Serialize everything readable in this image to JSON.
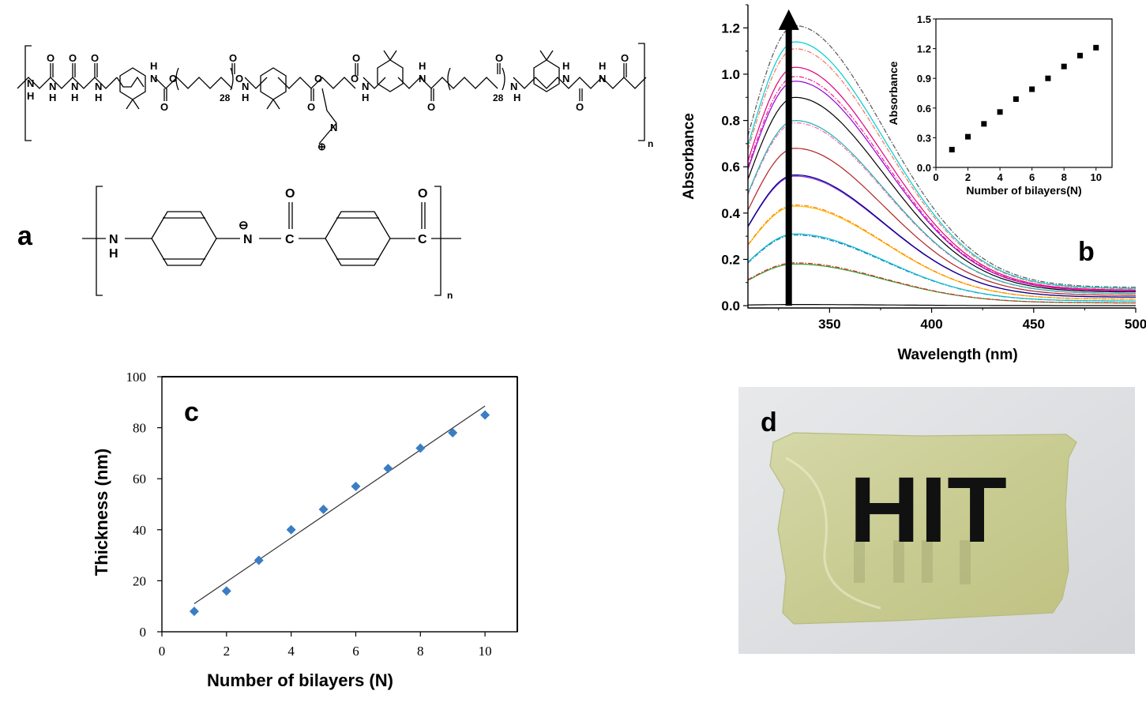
{
  "panels": {
    "a": {
      "letter": "a",
      "polymer1": {
        "repeat_subscript_1": "28",
        "repeat_subscript_2": "28",
        "n_label": "n",
        "atoms": [
          "H",
          "N",
          "O",
          "H",
          "N",
          "O",
          "H",
          "N",
          "O",
          "H",
          "N",
          "O",
          "O",
          "N",
          "H",
          "O",
          "O",
          "N",
          "H",
          "O",
          "N",
          "⊕",
          "O",
          "O",
          "O",
          "N",
          "H",
          "N",
          "H",
          "O",
          "N",
          "H",
          "O",
          "N",
          "H",
          "O",
          "N",
          "H",
          "O"
        ]
      },
      "polymer2": {
        "n_label": "n",
        "nh_n": "N",
        "nh_h": "H",
        "amide_n": "N",
        "minus": "⊖",
        "c1": "C",
        "o1": "O",
        "c2": "C",
        "o2": "O"
      }
    },
    "b": {
      "letter": "b"
    },
    "c": {
      "letter": "c"
    },
    "d": {
      "letter": "d",
      "printed_text": "HIT"
    }
  },
  "chart_data": [
    {
      "id": "b-main",
      "type": "line",
      "xlabel": "Wavelength (nm)",
      "ylabel": "Absorbance",
      "xlim": [
        310,
        500
      ],
      "ylim": [
        -0.01,
        1.3
      ],
      "xticks": [
        350,
        400,
        450,
        500
      ],
      "xtick_labels": [
        "350",
        "400",
        "450",
        "500"
      ],
      "yticks": [
        0.0,
        0.2,
        0.4,
        0.6,
        0.8,
        1.0,
        1.2
      ],
      "ytick_labels": [
        "0.0",
        "0.2",
        "0.4",
        "0.6",
        "0.8",
        "1.0",
        "1.2"
      ],
      "peak_wavelength": 333,
      "tail_level_fraction": 0.065,
      "series": [
        {
          "peak": 0.005,
          "color": "#000000",
          "dash": false
        },
        {
          "peak": 0.18,
          "color": "#2ca02c",
          "dash": false
        },
        {
          "peak": 0.185,
          "color": "#d62728",
          "dash": true
        },
        {
          "peak": 0.305,
          "color": "#1f77b4",
          "dash": true
        },
        {
          "peak": 0.31,
          "color": "#00bcd4",
          "dash": false
        },
        {
          "peak": 0.43,
          "color": "#ffc000",
          "dash": false
        },
        {
          "peak": 0.435,
          "color": "#ff7f0e",
          "dash": true
        },
        {
          "peak": 0.56,
          "color": "#8a2be2",
          "dash": false
        },
        {
          "peak": 0.565,
          "color": "#000080",
          "dash": false
        },
        {
          "peak": 0.68,
          "color": "#b22222",
          "dash": false
        },
        {
          "peak": 0.79,
          "color": "#ff69b4",
          "dash": true
        },
        {
          "peak": 0.8,
          "color": "#20b2aa",
          "dash": false
        },
        {
          "peak": 0.9,
          "color": "#000000",
          "dash": false
        },
        {
          "peak": 0.97,
          "color": "#9400d3",
          "dash": false
        },
        {
          "peak": 0.99,
          "color": "#ff1493",
          "dash": true
        },
        {
          "peak": 1.03,
          "color": "#e0007a",
          "dash": false
        },
        {
          "peak": 1.11,
          "color": "#ff6f61",
          "dash": true
        },
        {
          "peak": 1.14,
          "color": "#00ced1",
          "dash": false
        },
        {
          "peak": 1.21,
          "color": "#555555",
          "dash": true
        }
      ],
      "arrow": {
        "x": 330,
        "from": 0.0,
        "to": 1.28
      }
    },
    {
      "id": "b-inset",
      "type": "scatter",
      "xlabel": "Number of bilayers(N)",
      "ylabel": "Absorbance",
      "xlim": [
        0,
        11
      ],
      "ylim": [
        0,
        1.5
      ],
      "xticks": [
        0,
        2,
        4,
        6,
        8,
        10
      ],
      "xtick_labels": [
        "0",
        "2",
        "4",
        "6",
        "8",
        "10"
      ],
      "yticks": [
        0.0,
        0.3,
        0.6,
        0.9,
        1.2,
        1.5
      ],
      "ytick_labels": [
        "0.0",
        "0.3",
        "0.6",
        "0.9",
        "1.2",
        "1.5"
      ],
      "x": [
        1,
        2,
        3,
        4,
        5,
        6,
        7,
        8,
        9,
        10
      ],
      "y": [
        0.18,
        0.31,
        0.44,
        0.56,
        0.69,
        0.79,
        0.9,
        1.02,
        1.13,
        1.21
      ],
      "color": "#000000"
    },
    {
      "id": "c",
      "type": "scatter",
      "xlabel": "Number of bilayers (N)",
      "ylabel": "Thickness (nm)",
      "xlim": [
        0,
        11
      ],
      "ylim": [
        0,
        100
      ],
      "xticks": [
        0,
        2,
        4,
        6,
        8,
        10
      ],
      "xtick_labels": [
        "0",
        "2",
        "4",
        "6",
        "8",
        "10"
      ],
      "yticks": [
        0,
        20,
        40,
        60,
        80,
        100
      ],
      "ytick_labels": [
        "0",
        "20",
        "40",
        "60",
        "80",
        "100"
      ],
      "x": [
        1,
        2,
        3,
        4,
        5,
        6,
        7,
        8,
        9,
        10
      ],
      "y": [
        8,
        16,
        28,
        40,
        48,
        57,
        64,
        72,
        78,
        85
      ],
      "color": "#3b7dc4",
      "fit": {
        "x": [
          1,
          10
        ],
        "y": [
          11,
          88.5
        ]
      }
    }
  ]
}
